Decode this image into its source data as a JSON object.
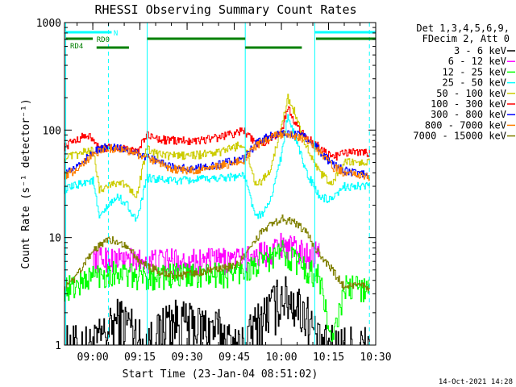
{
  "chart_data": {
    "type": "line",
    "title": "RHESSI Observing Summary Count Rates",
    "xlabel": "Start Time (23-Jan-04 08:51:02)",
    "ylabel": "Count Rate (s⁻¹ detector⁻¹)",
    "y_scale": "log",
    "ylim": [
      1,
      1000
    ],
    "xlim_minutes_after_0900": [
      -9,
      90
    ],
    "x_ticks": [
      "09:00",
      "09:15",
      "09:30",
      "09:45",
      "10:00",
      "10:15",
      "10:30"
    ],
    "y_ticks": [
      "1",
      "10",
      "100",
      "1000"
    ],
    "info_lines": [
      "Det 1,3,4,5,6,9,",
      "FDecim 2, Att 0"
    ],
    "timestamp": "14-Oct-2021 14:28",
    "flags": [
      {
        "label": "N",
        "color": "#00ffff"
      },
      {
        "label": "RD0",
        "color": "#008000"
      },
      {
        "label": "RD4",
        "color": "#008000"
      }
    ],
    "series": [
      {
        "name": "3 - 6 keV",
        "color": "#000000",
        "x": [
          -9,
          -6,
          0,
          5,
          8,
          12,
          16,
          20,
          24,
          30,
          36,
          40,
          44,
          48,
          52,
          56,
          60,
          64,
          68,
          72,
          76,
          80,
          84,
          88
        ],
        "y": [
          1.0,
          1.0,
          1.0,
          1.4,
          1.8,
          1.6,
          1.0,
          1.2,
          1.8,
          1.6,
          1.5,
          1.4,
          1.0,
          1.0,
          1.6,
          2.2,
          3.0,
          2.6,
          2.0,
          1.0,
          1.0,
          1.0,
          1.0,
          1.0
        ]
      },
      {
        "name": "6 - 12 keV",
        "color": "#ff00ff",
        "x": [
          0,
          5,
          8,
          12,
          16,
          20,
          24,
          30,
          36,
          40,
          44,
          48,
          52,
          56,
          60,
          64,
          68,
          72
        ],
        "y": [
          6.5,
          6.5,
          6.3,
          6.3,
          6.2,
          6.2,
          6.2,
          6.2,
          6.2,
          6.2,
          6.3,
          6.3,
          7.0,
          7.5,
          9.0,
          8.0,
          7.0,
          7.5
        ]
      },
      {
        "name": "12 - 25 keV",
        "color": "#00ff00",
        "x": [
          -9,
          -6,
          -3,
          0,
          5,
          8,
          12,
          16,
          20,
          24,
          30,
          36,
          40,
          44,
          48,
          52,
          56,
          60,
          64,
          68,
          72,
          76,
          80,
          84,
          88
        ],
        "y": [
          3.5,
          3.5,
          4.0,
          4.5,
          4.8,
          4.8,
          4.5,
          4.3,
          4.5,
          4.5,
          4.5,
          4.5,
          4.6,
          4.7,
          5.0,
          5.5,
          6.5,
          7.5,
          6.5,
          5.0,
          4.5,
          1.0,
          3.5,
          3.5,
          3.5
        ]
      },
      {
        "name": "25 - 50 keV",
        "color": "#00ffff",
        "x": [
          -9,
          -6,
          -3,
          0,
          2,
          5,
          8,
          11,
          14,
          17,
          20,
          24,
          30,
          36,
          40,
          44,
          48,
          52,
          56,
          60,
          62,
          64,
          66,
          68,
          72,
          76,
          80,
          84,
          88
        ],
        "y": [
          28,
          30,
          33,
          34,
          15,
          20,
          24,
          20,
          14,
          36,
          35,
          34,
          34,
          35,
          36,
          37,
          38,
          15,
          20,
          60,
          140,
          90,
          60,
          40,
          24,
          22,
          30,
          30,
          30
        ]
      },
      {
        "name": "50 - 100 keV",
        "color": "#cccc00",
        "x": [
          -9,
          -6,
          -3,
          0,
          2,
          5,
          8,
          11,
          14,
          17,
          20,
          24,
          30,
          36,
          40,
          44,
          48,
          52,
          56,
          60,
          62,
          64,
          66,
          68,
          72,
          76,
          80,
          84,
          88
        ],
        "y": [
          55,
          58,
          62,
          65,
          28,
          31,
          33,
          30,
          25,
          67,
          60,
          58,
          58,
          60,
          62,
          68,
          75,
          30,
          40,
          110,
          200,
          150,
          100,
          70,
          40,
          32,
          50,
          50,
          50
        ]
      },
      {
        "name": "100 - 300 keV",
        "color": "#ff0000",
        "x": [
          -9,
          -6,
          -3,
          0,
          2,
          5,
          8,
          11,
          14,
          17,
          20,
          24,
          30,
          36,
          40,
          44,
          48,
          52,
          56,
          60,
          62,
          64,
          66,
          68,
          72,
          76,
          80,
          84,
          88
        ],
        "y": [
          70,
          80,
          88,
          85,
          65,
          68,
          68,
          66,
          62,
          90,
          84,
          80,
          80,
          82,
          86,
          92,
          100,
          72,
          82,
          100,
          160,
          120,
          96,
          86,
          70,
          55,
          62,
          62,
          62
        ]
      },
      {
        "name": "300 - 800 keV",
        "color": "#0000ff",
        "x": [
          -9,
          -6,
          -3,
          0,
          3,
          6,
          9,
          12,
          15,
          20,
          25,
          30,
          35,
          40,
          45,
          48,
          52,
          56,
          60,
          64,
          68,
          72,
          76,
          80,
          84,
          88
        ],
        "y": [
          40,
          44,
          52,
          62,
          68,
          70,
          68,
          65,
          60,
          52,
          46,
          44,
          45,
          48,
          52,
          55,
          75,
          88,
          95,
          92,
          85,
          65,
          48,
          42,
          40,
          38
        ]
      },
      {
        "name": "800 - 7000 keV",
        "color": "#ff8000",
        "x": [
          -9,
          -6,
          -3,
          0,
          3,
          6,
          9,
          12,
          15,
          20,
          25,
          30,
          35,
          40,
          45,
          48,
          52,
          56,
          60,
          64,
          68,
          72,
          76,
          80,
          84,
          88
        ],
        "y": [
          38,
          42,
          50,
          60,
          66,
          68,
          66,
          63,
          58,
          50,
          44,
          42,
          43,
          46,
          50,
          53,
          72,
          85,
          92,
          88,
          82,
          62,
          46,
          40,
          38,
          36
        ]
      },
      {
        "name": "7000 - 15000 keV",
        "color": "#808000",
        "x": [
          -9,
          -6,
          -3,
          0,
          3,
          6,
          9,
          12,
          15,
          20,
          25,
          30,
          35,
          40,
          45,
          48,
          52,
          56,
          60,
          64,
          68,
          72,
          76,
          80,
          84,
          88
        ],
        "y": [
          3.5,
          4.0,
          5.5,
          7.5,
          9.0,
          9.5,
          9.0,
          7.5,
          6.0,
          5.0,
          4.5,
          4.5,
          4.8,
          5.0,
          5.5,
          6.5,
          10,
          13,
          15,
          14,
          11,
          7,
          5,
          3.5,
          3.5,
          3.5
        ]
      }
    ]
  }
}
